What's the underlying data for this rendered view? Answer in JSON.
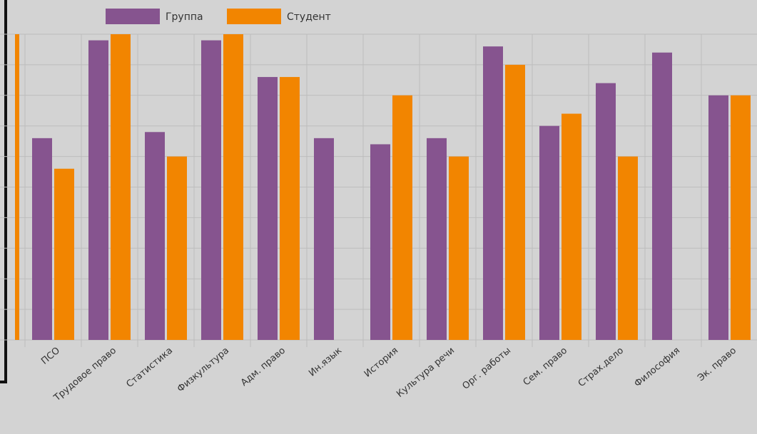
{
  "chart_data": {
    "type": "bar",
    "categories": [
      "ПСО",
      "Трудовое право",
      "Статистика",
      "Физкультура",
      "Адм. право",
      "Ин.язык",
      "История",
      "Культура речи",
      "Орг. работы",
      "Сем. право",
      "Страх.дело",
      "Философия",
      "Эк. право"
    ],
    "series": [
      {
        "name": "Группа",
        "values": [
          66,
          98,
          68,
          98,
          86,
          66,
          64,
          66,
          96,
          70,
          84,
          94,
          80
        ]
      },
      {
        "name": "Студент",
        "values": [
          56,
          100,
          60,
          100,
          86,
          null,
          80,
          60,
          90,
          74,
          60,
          null,
          80
        ]
      }
    ],
    "ylim": [
      0,
      100
    ],
    "grid": true,
    "legend": "top",
    "colors": {
      "Группа": "#86548f",
      "Студент": "#f28500",
      "grid": "#bdbdbd",
      "background": "#d3d3d3"
    }
  }
}
